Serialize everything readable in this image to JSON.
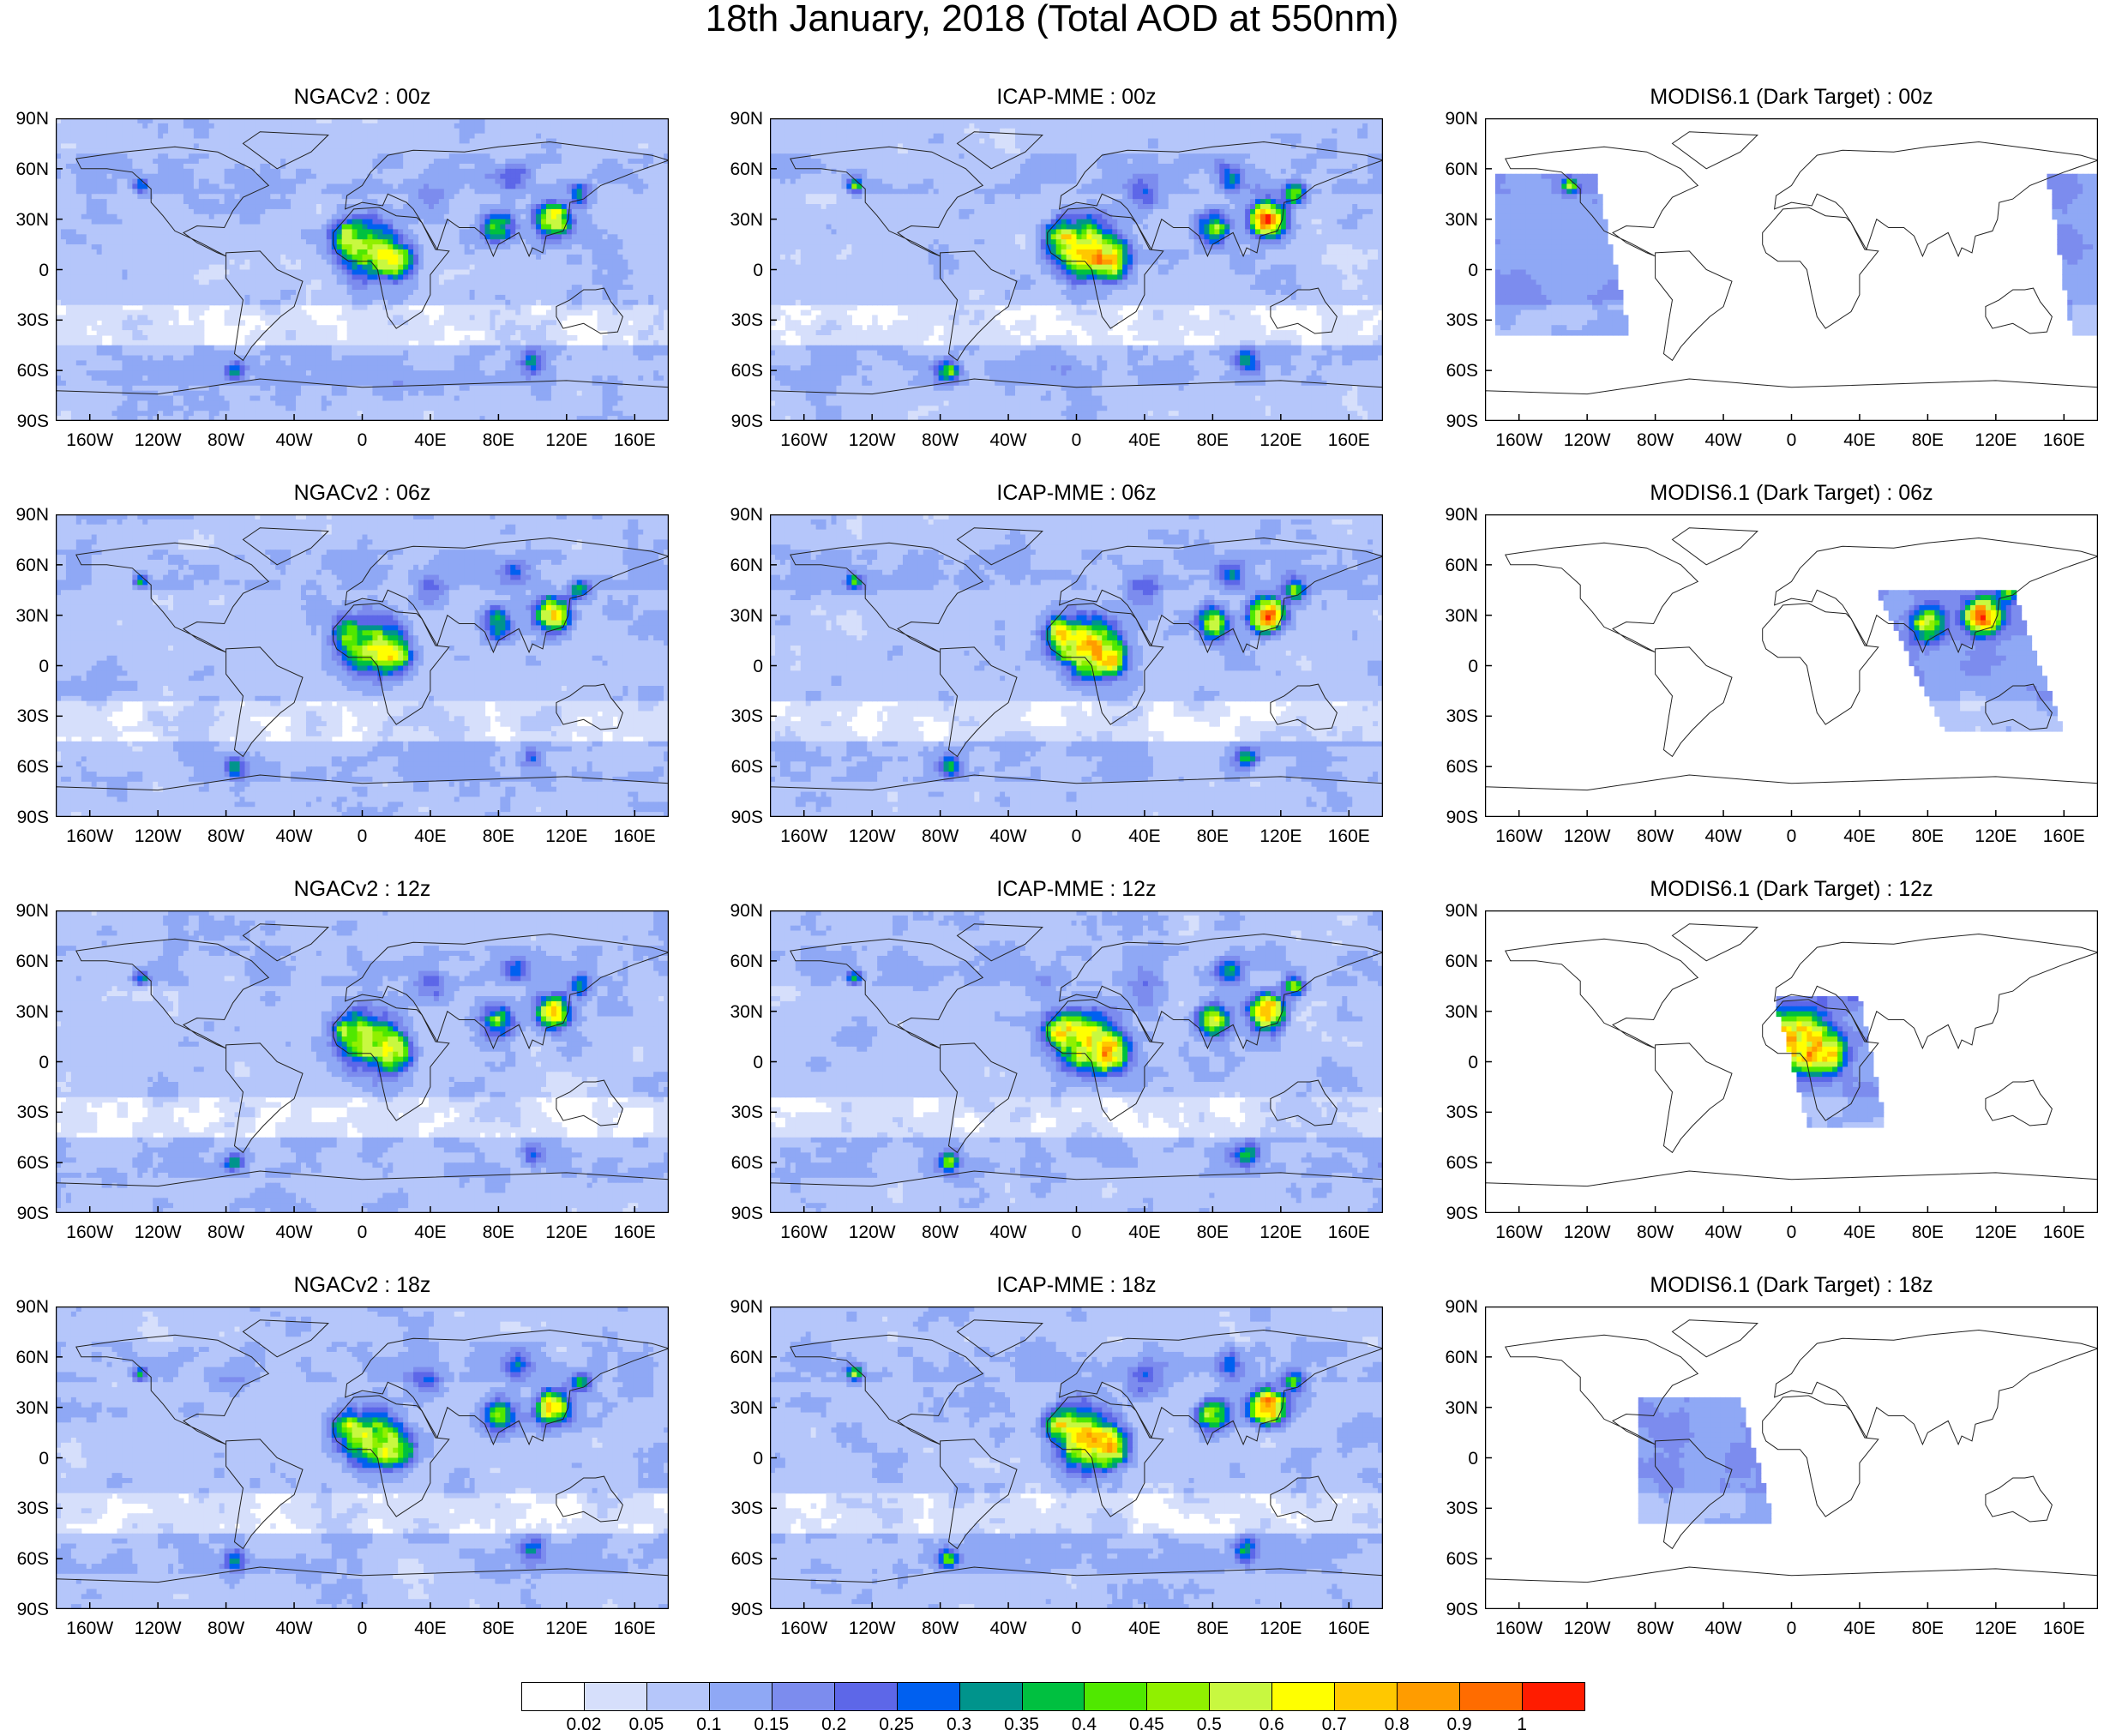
{
  "title": "18th January, 2018 (Total AOD at 550nm)",
  "lat_ticks": [
    "90N",
    "60N",
    "30N",
    "0",
    "30S",
    "60S",
    "90S"
  ],
  "lon_ticks": [
    "160W",
    "120W",
    "80W",
    "40W",
    "0",
    "40E",
    "80E",
    "120E",
    "160E"
  ],
  "panels": [
    {
      "title": "NGACv2 : 00z",
      "kind": "model",
      "source": "ngac",
      "hour": 0
    },
    {
      "title": "ICAP-MME : 00z",
      "kind": "model",
      "source": "icap",
      "hour": 0
    },
    {
      "title": "MODIS6.1 (Dark Target) : 00z",
      "kind": "swath",
      "hour": 0
    },
    {
      "title": "NGACv2 : 06z",
      "kind": "model",
      "source": "ngac",
      "hour": 6
    },
    {
      "title": "ICAP-MME : 06z",
      "kind": "model",
      "source": "icap",
      "hour": 6
    },
    {
      "title": "MODIS6.1 (Dark Target) : 06z",
      "kind": "swath",
      "hour": 6
    },
    {
      "title": "NGACv2 : 12z",
      "kind": "model",
      "source": "ngac",
      "hour": 12
    },
    {
      "title": "ICAP-MME : 12z",
      "kind": "model",
      "source": "icap",
      "hour": 12
    },
    {
      "title": "MODIS6.1 (Dark Target) : 12z",
      "kind": "swath",
      "hour": 12
    },
    {
      "title": "NGACv2 : 18z",
      "kind": "model",
      "source": "ngac",
      "hour": 18
    },
    {
      "title": "ICAP-MME : 18z",
      "kind": "model",
      "source": "icap",
      "hour": 18
    },
    {
      "title": "MODIS6.1 (Dark Target) : 18z",
      "kind": "swath",
      "hour": 18
    }
  ],
  "colorbar": {
    "colors": [
      "#ffffff",
      "#d6dffb",
      "#b5c6fa",
      "#8fa8f5",
      "#7c8cee",
      "#5d67e8",
      "#0060f0",
      "#00948c",
      "#00c040",
      "#50e800",
      "#90f000",
      "#c8f840",
      "#ffff00",
      "#ffc800",
      "#ff9c00",
      "#ff6c00",
      "#ff1c00"
    ],
    "labels": [
      "0.02",
      "0.05",
      "0.1",
      "0.15",
      "0.2",
      "0.25",
      "0.3",
      "0.35",
      "0.4",
      "0.45",
      "0.5",
      "0.6",
      "0.7",
      "0.8",
      "0.9",
      "1"
    ]
  }
}
